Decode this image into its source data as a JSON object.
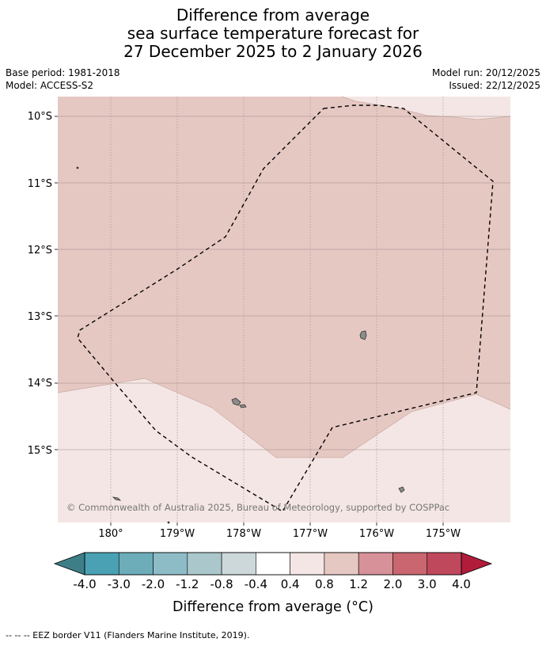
{
  "title": {
    "line1": "Difference from average",
    "line2": "sea surface temperature forecast for",
    "line3": "27 December 2025 to 2 January 2026"
  },
  "meta": {
    "base_period": "Base period: 1981-2018",
    "model": "Model: ACCESS-S2",
    "model_run": "Model run: 20/12/2025",
    "issued": "Issued: 22/12/2025"
  },
  "map": {
    "lat_labels": [
      "10°S",
      "11°S",
      "12°S",
      "13°S",
      "14°S",
      "15°S"
    ],
    "lon_labels": [
      "180°",
      "179°W",
      "178°W",
      "177°W",
      "176°W",
      "175°W"
    ],
    "copyright": "© Commonwealth of Australia 2025, Bureau of Meteorology, supported by COSPPac",
    "colors": {
      "anomaly_0_8_to_1_2": "#e6c8c3",
      "anomaly_0_4_to_0_8": "#f4e6e4",
      "land": "#8c8c8c",
      "gridline": "#9a8a88"
    }
  },
  "colorbar": {
    "tick_labels": [
      "-4.0",
      "-3.0",
      "-2.0",
      "-1.2",
      "-0.8",
      "-0.4",
      "0.4",
      "0.8",
      "1.2",
      "2.0",
      "3.0",
      "4.0"
    ],
    "under_color": "#3e7f87",
    "over_color": "#b01c3a",
    "bin_colors": [
      "#4aa1b4",
      "#6cadb9",
      "#8dbcc7",
      "#aac7cc",
      "#ccd8da",
      "#ffffff",
      "#f4e6e4",
      "#e6c8c3",
      "#d79199",
      "#c9666f",
      "#c0485c"
    ],
    "label": "Difference from average (°C)"
  },
  "footnote": "--  --  -- EEZ border V11 (Flanders Marine Institute, 2019)."
}
